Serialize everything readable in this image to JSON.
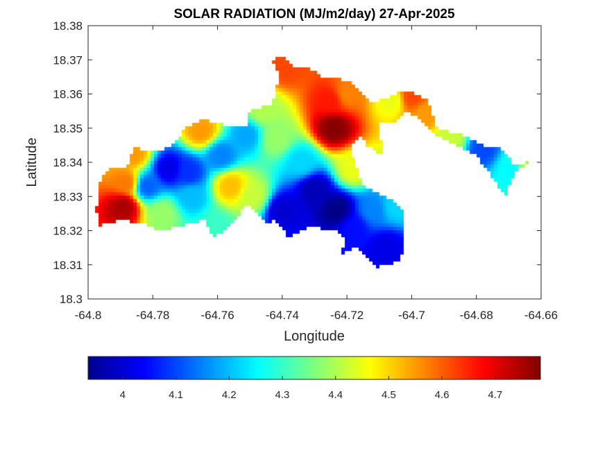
{
  "chart_data": {
    "type": "heatmap",
    "title": "SOLAR RADIATION (MJ/m2/day) 27-Apr-2025",
    "xlabel": "Longitude",
    "ylabel": "Latitude",
    "xlim": [
      -64.8,
      -64.66
    ],
    "ylim": [
      18.3,
      18.38
    ],
    "xticks": [
      -64.8,
      -64.78,
      -64.76,
      -64.74,
      -64.72,
      -64.7,
      -64.68,
      -64.66
    ],
    "xtick_labels": [
      "-64.8",
      "-64.78",
      "-64.76",
      "-64.74",
      "-64.72",
      "-64.7",
      "-64.68",
      "-64.66"
    ],
    "yticks": [
      18.3,
      18.31,
      18.32,
      18.33,
      18.34,
      18.35,
      18.36,
      18.37,
      18.38
    ],
    "ytick_labels": [
      "18.3",
      "18.31",
      "18.32",
      "18.33",
      "18.34",
      "18.35",
      "18.36",
      "18.37",
      "18.38"
    ],
    "grid": false,
    "colormap": "jet",
    "colorbar": {
      "orientation": "horizontal",
      "location": "bottom",
      "range": [
        3.935,
        4.785
      ],
      "ticks": [
        4.0,
        4.1,
        4.2,
        4.3,
        4.4,
        4.5,
        4.6,
        4.7
      ],
      "tick_labels": [
        "4",
        "4.1",
        "4.2",
        "4.3",
        "4.4",
        "4.5",
        "4.6",
        "4.7"
      ]
    },
    "island_outline": [
      [
        -64.7965,
        18.3215
      ],
      [
        -64.7975,
        18.326
      ],
      [
        -64.796,
        18.336
      ],
      [
        -64.793,
        18.338
      ],
      [
        -64.788,
        18.339
      ],
      [
        -64.786,
        18.3445
      ],
      [
        -64.779,
        18.343
      ],
      [
        -64.773,
        18.3455
      ],
      [
        -64.77,
        18.3505
      ],
      [
        -64.764,
        18.3525
      ],
      [
        -64.758,
        18.351
      ],
      [
        -64.751,
        18.351
      ],
      [
        -64.75,
        18.355
      ],
      [
        -64.743,
        18.357
      ],
      [
        -64.741,
        18.365
      ],
      [
        -64.743,
        18.37
      ],
      [
        -64.7395,
        18.371
      ],
      [
        -64.737,
        18.368
      ],
      [
        -64.732,
        18.368
      ],
      [
        -64.728,
        18.365
      ],
      [
        -64.719,
        18.364
      ],
      [
        -64.716,
        18.361
      ],
      [
        -64.712,
        18.3575
      ],
      [
        -64.702,
        18.361
      ],
      [
        -64.697,
        18.3595
      ],
      [
        -64.695,
        18.358
      ],
      [
        -64.692,
        18.35
      ],
      [
        -64.684,
        18.348
      ],
      [
        -64.678,
        18.345
      ],
      [
        -64.672,
        18.344
      ],
      [
        -64.668,
        18.339
      ],
      [
        -64.662,
        18.341
      ],
      [
        -64.668,
        18.337
      ],
      [
        -64.671,
        18.33
      ],
      [
        -64.674,
        18.334
      ],
      [
        -64.68,
        18.342
      ],
      [
        -64.688,
        18.346
      ],
      [
        -64.693,
        18.348
      ],
      [
        -64.698,
        18.353
      ],
      [
        -64.702,
        18.355
      ],
      [
        -64.705,
        18.352
      ],
      [
        -64.71,
        18.352
      ],
      [
        -64.709,
        18.342
      ],
      [
        -64.714,
        18.345
      ],
      [
        -64.716,
        18.348
      ],
      [
        -64.719,
        18.344
      ],
      [
        -64.717,
        18.339
      ],
      [
        -64.715,
        18.333
      ],
      [
        -64.708,
        18.33
      ],
      [
        -64.702,
        18.326
      ],
      [
        -64.703,
        18.32
      ],
      [
        -64.702,
        18.315
      ],
      [
        -64.704,
        18.311
      ],
      [
        -64.711,
        18.309
      ],
      [
        -64.714,
        18.312
      ],
      [
        -64.717,
        18.315
      ],
      [
        -64.722,
        18.313
      ],
      [
        -64.72,
        18.317
      ],
      [
        -64.723,
        18.32
      ],
      [
        -64.731,
        18.321
      ],
      [
        -64.738,
        18.318
      ],
      [
        -64.742,
        18.323
      ],
      [
        -64.744,
        18.322
      ],
      [
        -64.748,
        18.325
      ],
      [
        -64.751,
        18.328
      ],
      [
        -64.753,
        18.325
      ],
      [
        -64.758,
        18.32
      ],
      [
        -64.761,
        18.318
      ],
      [
        -64.764,
        18.323
      ],
      [
        -64.772,
        18.321
      ],
      [
        -64.778,
        18.32
      ],
      [
        -64.783,
        18.322
      ],
      [
        -64.79,
        18.323
      ],
      [
        -64.7965,
        18.3215
      ]
    ],
    "field_points": [
      {
        "lon": -64.724,
        "lat": 18.35,
        "value": 4.78
      },
      {
        "lon": -64.725,
        "lat": 18.358,
        "value": 4.66
      },
      {
        "lon": -64.72,
        "lat": 18.36,
        "value": 4.57
      },
      {
        "lon": -64.7385,
        "lat": 18.368,
        "value": 4.62
      },
      {
        "lon": -64.706,
        "lat": 18.358,
        "value": 4.45
      },
      {
        "lon": -64.7,
        "lat": 18.359,
        "value": 4.62
      },
      {
        "lon": -64.696,
        "lat": 18.354,
        "value": 4.55
      },
      {
        "lon": -64.688,
        "lat": 18.347,
        "value": 4.42
      },
      {
        "lon": -64.678,
        "lat": 18.344,
        "value": 4.1
      },
      {
        "lon": -64.669,
        "lat": 18.338,
        "value": 4.25
      },
      {
        "lon": -64.665,
        "lat": 18.34,
        "value": 4.4
      },
      {
        "lon": -64.789,
        "lat": 18.327,
        "value": 4.75
      },
      {
        "lon": -64.788,
        "lat": 18.334,
        "value": 4.58
      },
      {
        "lon": -64.786,
        "lat": 18.3425,
        "value": 4.55
      },
      {
        "lon": -64.765,
        "lat": 18.349,
        "value": 4.55
      },
      {
        "lon": -64.756,
        "lat": 18.333,
        "value": 4.52
      },
      {
        "lon": -64.749,
        "lat": 18.33,
        "value": 4.42
      },
      {
        "lon": -64.742,
        "lat": 18.347,
        "value": 4.38
      },
      {
        "lon": -64.746,
        "lat": 18.355,
        "value": 4.4
      },
      {
        "lon": -64.777,
        "lat": 18.325,
        "value": 4.38
      },
      {
        "lon": -64.775,
        "lat": 18.338,
        "value": 4.02
      },
      {
        "lon": -64.769,
        "lat": 18.337,
        "value": 4.08
      },
      {
        "lon": -64.782,
        "lat": 18.333,
        "value": 4.12
      },
      {
        "lon": -64.759,
        "lat": 18.342,
        "value": 4.15
      },
      {
        "lon": -64.751,
        "lat": 18.348,
        "value": 4.18
      },
      {
        "lon": -64.768,
        "lat": 18.33,
        "value": 4.2
      },
      {
        "lon": -64.761,
        "lat": 18.321,
        "value": 4.3
      },
      {
        "lon": -64.73,
        "lat": 18.332,
        "value": 3.98
      },
      {
        "lon": -64.723,
        "lat": 18.326,
        "value": 3.94
      },
      {
        "lon": -64.74,
        "lat": 18.326,
        "value": 4.0
      },
      {
        "lon": -64.718,
        "lat": 18.321,
        "value": 4.05
      },
      {
        "lon": -64.708,
        "lat": 18.315,
        "value": 4.02
      },
      {
        "lon": -64.712,
        "lat": 18.326,
        "value": 4.15
      },
      {
        "lon": -64.734,
        "lat": 18.34,
        "value": 4.22
      },
      {
        "lon": -64.718,
        "lat": 18.338,
        "value": 4.45
      },
      {
        "lon": -64.705,
        "lat": 18.327,
        "value": 4.22
      }
    ]
  }
}
